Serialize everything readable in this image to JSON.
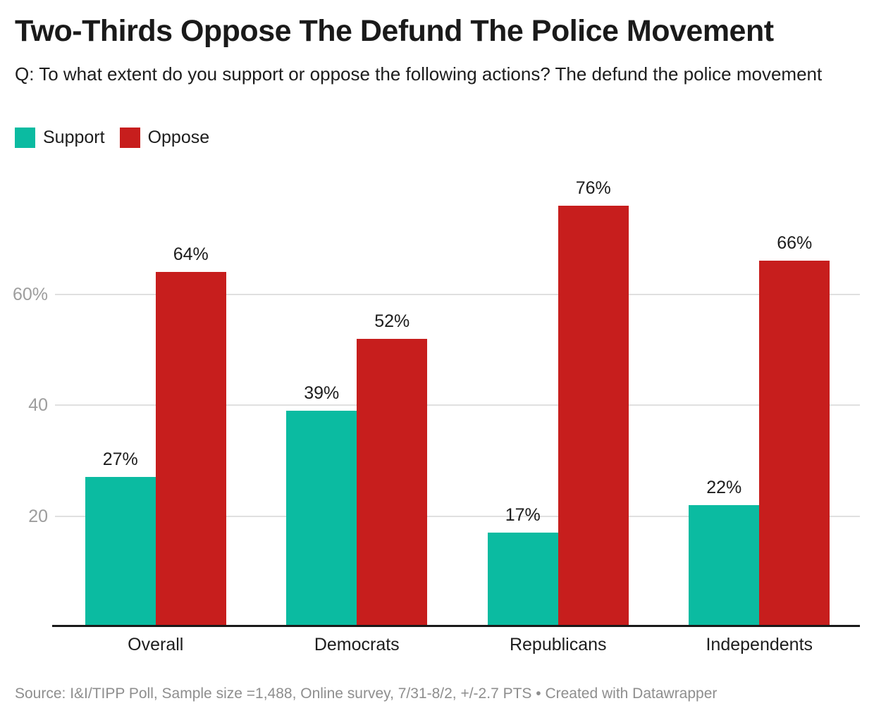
{
  "header": {
    "title": "Two-Thirds Oppose The Defund The Police Movement",
    "subtitle": "Q: To what extent do you support or oppose the following actions? The defund the police movement"
  },
  "legend": [
    {
      "label": "Support",
      "color": "#0bbba1"
    },
    {
      "label": "Oppose",
      "color": "#c71e1d"
    }
  ],
  "chart_data": {
    "type": "bar",
    "title": "Two-Thirds Oppose The Defund The Police Movement",
    "subtitle": "Q: To what extent do you support or oppose the following actions? The defund the police movement",
    "categories": [
      "Overall",
      "Democrats",
      "Republicans",
      "Independents"
    ],
    "series": [
      {
        "name": "Support",
        "color": "#0bbba1",
        "values": [
          27,
          39,
          17,
          22
        ]
      },
      {
        "name": "Oppose",
        "color": "#c71e1d",
        "values": [
          64,
          52,
          76,
          66
        ]
      }
    ],
    "value_suffix": "%",
    "data_labels": true,
    "xlabel": "",
    "ylabel": "",
    "y_axis": {
      "range": [
        0,
        80
      ],
      "grid": true,
      "ticks": [
        {
          "value": 20,
          "label": "20"
        },
        {
          "value": 40,
          "label": "40"
        },
        {
          "value": 60,
          "label": "60%"
        }
      ]
    },
    "legend_position": "top-left"
  },
  "footer": {
    "source": "Source: I&I/TIPP Poll, Sample size =1,488, Online survey, 7/31-8/2, +/-2.7 PTS • Created with Datawrapper"
  },
  "colors": {
    "support": "#0bbba1",
    "oppose": "#c71e1d",
    "grid_line": "#e0e0e0",
    "axis_line": "#1a1a1a",
    "tick_label": "#9d9d9d",
    "text": "#1d1d1d",
    "footer_text": "#8e8e8e",
    "background": "#ffffff"
  }
}
